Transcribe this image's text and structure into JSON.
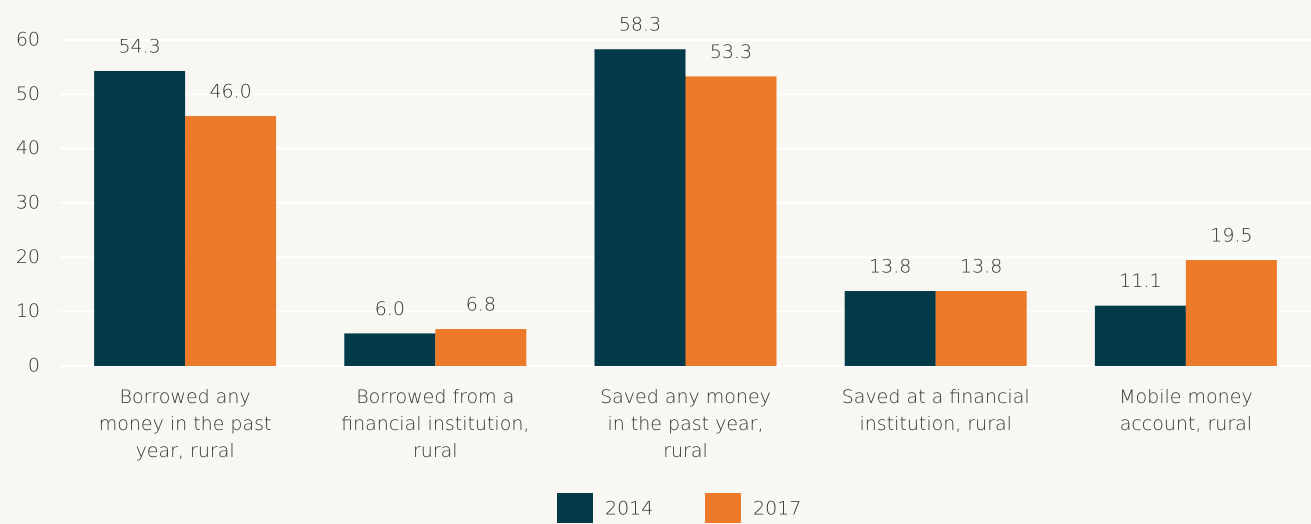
{
  "chart_data": {
    "type": "bar",
    "categories": [
      "Borrowed any\nmoney in the past\nyear, rural",
      "Borrowed from a\nfinancial institution,\nrural",
      "Saved any money\nin the past year,\nrural",
      "Saved at a financial\ninstitution, rural",
      "Mobile money\naccount, rural"
    ],
    "series": [
      {
        "name": "2014",
        "color": "#033a49",
        "values": [
          54.3,
          6.0,
          58.3,
          13.8,
          11.1
        ],
        "value_labels": [
          "54.3",
          "6.0",
          "58.3",
          "13.8",
          "11.1"
        ]
      },
      {
        "name": "2017",
        "color": "#ec7a28",
        "values": [
          46.0,
          6.8,
          53.3,
          13.8,
          19.5
        ],
        "value_labels": [
          "46.0",
          "6.8",
          "53.3",
          "13.8",
          "19.5"
        ]
      }
    ],
    "ylim": [
      0,
      60
    ],
    "yticks": [
      0,
      10,
      20,
      30,
      40,
      50,
      60
    ],
    "grid": true,
    "legend": "bottom"
  }
}
